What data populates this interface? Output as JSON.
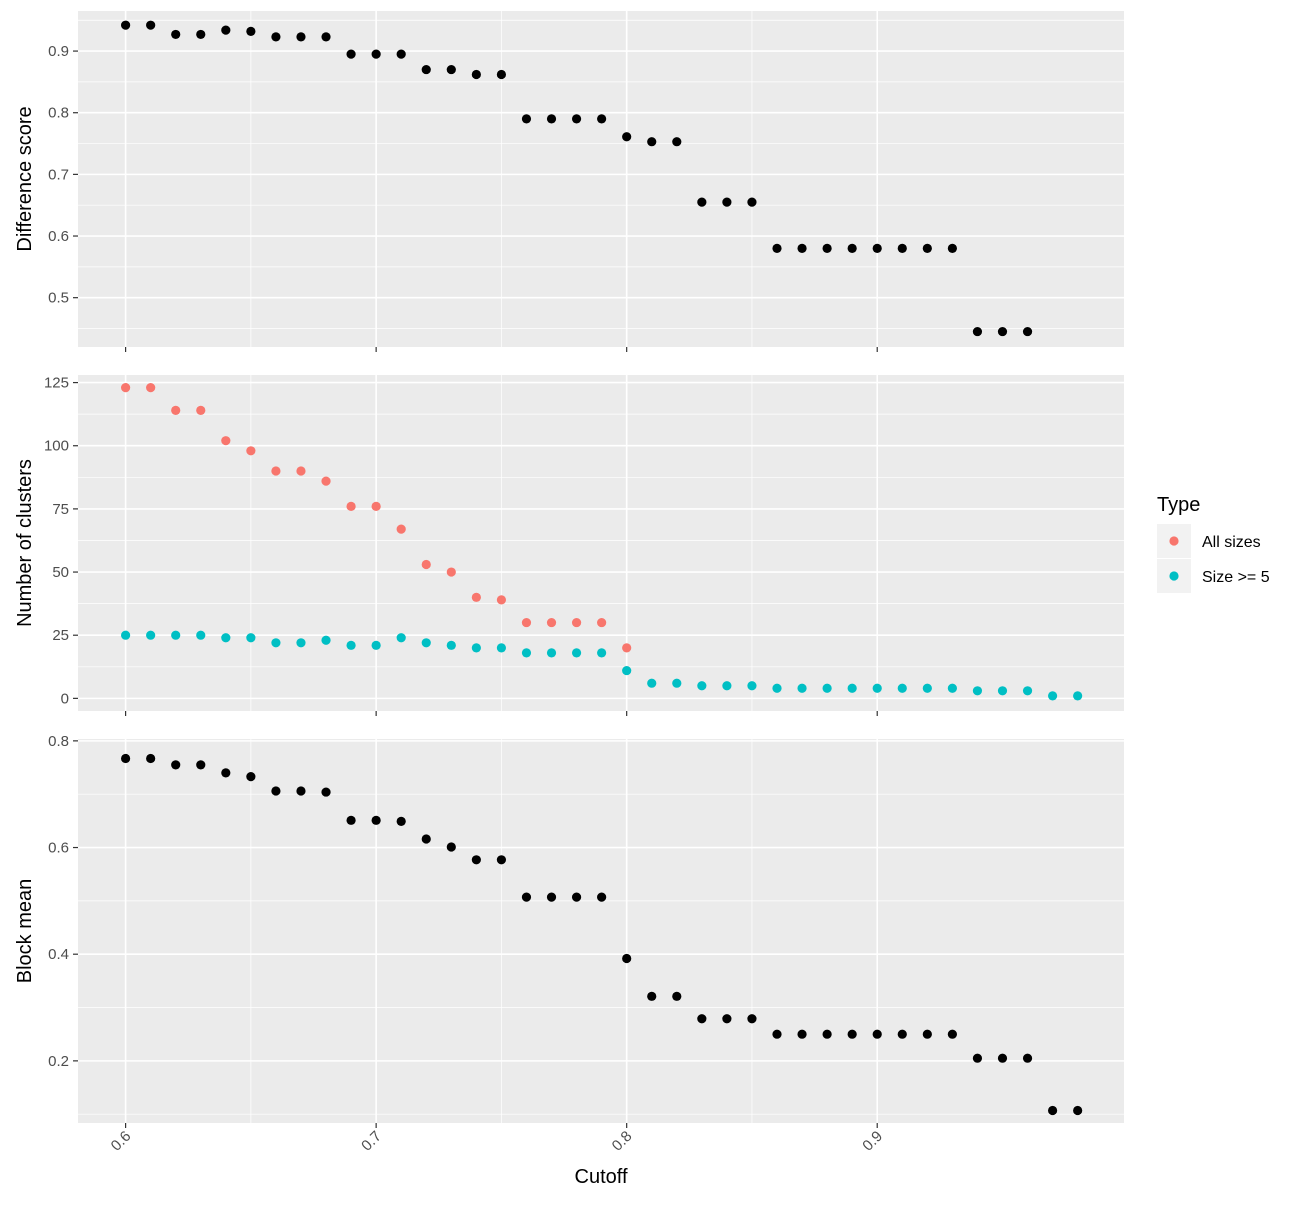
{
  "chart_data": {
    "type": "scatter",
    "xlabel": "Cutoff",
    "x_ticks": [
      "0.6",
      "0.7",
      "0.8",
      "0.9"
    ],
    "x_tick_values": [
      0.6,
      0.7,
      0.8,
      0.9
    ],
    "xlim": [
      0.581,
      0.9985
    ],
    "grid": true,
    "panels": [
      {
        "ylabel": "Difference score",
        "ylim": [
          0.42,
          0.965
        ],
        "y_ticks": [
          "0.5",
          "0.6",
          "0.7",
          "0.8",
          "0.9"
        ],
        "y_tick_values": [
          0.5,
          0.6,
          0.7,
          0.8,
          0.9
        ],
        "series": [
          {
            "color": "#000000",
            "x": [
              0.6,
              0.61,
              0.62,
              0.63,
              0.64,
              0.65,
              0.66,
              0.67,
              0.68,
              0.69,
              0.7,
              0.71,
              0.72,
              0.73,
              0.74,
              0.75,
              0.76,
              0.77,
              0.78,
              0.79,
              0.8,
              0.81,
              0.82,
              0.83,
              0.84,
              0.85,
              0.86,
              0.87,
              0.88,
              0.89,
              0.9,
              0.91,
              0.92,
              0.93,
              0.94,
              0.95,
              0.96
            ],
            "y": [
              0.942,
              0.942,
              0.927,
              0.927,
              0.934,
              0.932,
              0.923,
              0.923,
              0.923,
              0.895,
              0.895,
              0.895,
              0.87,
              0.87,
              0.862,
              0.862,
              0.79,
              0.79,
              0.79,
              0.79,
              0.761,
              0.753,
              0.753,
              0.655,
              0.655,
              0.655,
              0.58,
              0.58,
              0.58,
              0.58,
              0.58,
              0.58,
              0.58,
              0.58,
              0.445,
              0.445,
              0.445
            ]
          }
        ]
      },
      {
        "ylabel": "Number of clusters",
        "ylim": [
          -5,
          128
        ],
        "y_ticks": [
          "0",
          "25",
          "50",
          "75",
          "100",
          "125"
        ],
        "y_tick_values": [
          0,
          25,
          50,
          75,
          100,
          125
        ],
        "series": [
          {
            "name": "All sizes",
            "color": "#F8766D",
            "x": [
              0.6,
              0.61,
              0.62,
              0.63,
              0.64,
              0.65,
              0.66,
              0.67,
              0.68,
              0.69,
              0.7,
              0.71,
              0.72,
              0.73,
              0.74,
              0.75,
              0.76,
              0.77,
              0.78,
              0.79,
              0.8
            ],
            "y": [
              123,
              123,
              114,
              114,
              102,
              98,
              90,
              90,
              86,
              76,
              76,
              67,
              53,
              50,
              40,
              39,
              30,
              30,
              30,
              30,
              20
            ]
          },
          {
            "name": "Size >= 5",
            "color": "#00BFC4",
            "x": [
              0.6,
              0.61,
              0.62,
              0.63,
              0.64,
              0.65,
              0.66,
              0.67,
              0.68,
              0.69,
              0.7,
              0.71,
              0.72,
              0.73,
              0.74,
              0.75,
              0.76,
              0.77,
              0.78,
              0.79,
              0.8,
              0.81,
              0.82,
              0.83,
              0.84,
              0.85,
              0.86,
              0.87,
              0.88,
              0.89,
              0.9,
              0.91,
              0.92,
              0.93,
              0.94,
              0.95,
              0.96,
              0.97,
              0.98
            ],
            "y": [
              25,
              25,
              25,
              25,
              24,
              24,
              22,
              22,
              23,
              21,
              21,
              24,
              22,
              21,
              20,
              20,
              18,
              18,
              18,
              18,
              11,
              6,
              6,
              5,
              5,
              5,
              4,
              4,
              4,
              4,
              4,
              4,
              4,
              4,
              3,
              3,
              3,
              1,
              1
            ]
          }
        ]
      },
      {
        "ylabel": "Block mean",
        "ylim": [
          0.0835,
          0.8035
        ],
        "y_ticks": [
          "0.2",
          "0.4",
          "0.6",
          "0.8"
        ],
        "y_tick_values": [
          0.2,
          0.4,
          0.6,
          0.8
        ],
        "series": [
          {
            "color": "#000000",
            "x": [
              0.6,
              0.61,
              0.62,
              0.63,
              0.64,
              0.65,
              0.66,
              0.67,
              0.68,
              0.69,
              0.7,
              0.71,
              0.72,
              0.73,
              0.74,
              0.75,
              0.76,
              0.77,
              0.78,
              0.79,
              0.8,
              0.81,
              0.82,
              0.83,
              0.84,
              0.85,
              0.86,
              0.87,
              0.88,
              0.89,
              0.9,
              0.91,
              0.92,
              0.93,
              0.94,
              0.95,
              0.96,
              0.97,
              0.98
            ],
            "y": [
              0.767,
              0.767,
              0.755,
              0.755,
              0.74,
              0.733,
              0.706,
              0.706,
              0.704,
              0.651,
              0.651,
              0.649,
              0.616,
              0.601,
              0.577,
              0.577,
              0.507,
              0.507,
              0.507,
              0.507,
              0.392,
              0.321,
              0.321,
              0.279,
              0.279,
              0.279,
              0.25,
              0.25,
              0.25,
              0.25,
              0.25,
              0.25,
              0.25,
              0.25,
              0.205,
              0.205,
              0.205,
              0.107,
              0.107
            ]
          }
        ]
      }
    ],
    "legend": {
      "title": "Type",
      "position": "right",
      "entries": [
        {
          "label": "All sizes",
          "color": "#F8766D"
        },
        {
          "label": "Size >= 5",
          "color": "#00BFC4"
        }
      ]
    }
  }
}
